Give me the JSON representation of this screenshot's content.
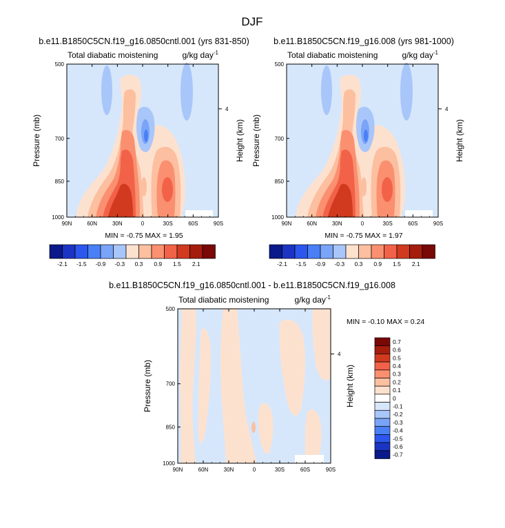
{
  "main_title": "DJF",
  "colors": {
    "diverging_12": [
      "#0a1a8a",
      "#1b34c4",
      "#2b57ee",
      "#4a80f6",
      "#7aa4f8",
      "#a9c6fa",
      "#fde1cf",
      "#fcbf9f",
      "#fa9070",
      "#f26248",
      "#d13a1f",
      "#a51d0c",
      "#7a0806"
    ],
    "background_fill": "#d6e7fb"
  },
  "chart_data": [
    {
      "type": "contour",
      "title": "b.e11.B1850C5CN.f19_g16.0850cntl.001 (yrs 831-850)",
      "left_label": "Total diabatic moistening",
      "right_label": "g/kg day",
      "right_label_sup": "-1",
      "ylabel": "Pressure (mb)",
      "ylabel_right": "Height (km)",
      "x_ticks": [
        "90N",
        "60N",
        "30N",
        "0",
        "30S",
        "60S",
        "90S"
      ],
      "y_ticks": [
        "500",
        "700",
        "850",
        "1000"
      ],
      "y_ticks_right": [
        "4"
      ],
      "stats": "MIN = -0.75  MAX =  1.95",
      "colorbar": {
        "orientation": "horizontal",
        "labels": [
          "-2.1",
          "-1.5",
          "-0.9",
          "-0.3",
          "0.3",
          "0.9",
          "1.5",
          "2.1"
        ]
      },
      "features": [
        {
          "lat": -20,
          "p": 950,
          "value": 1.95
        },
        {
          "lat": -20,
          "p": 820,
          "value": 1.5
        },
        {
          "lat": 45,
          "p": 860,
          "value": 1.2
        },
        {
          "lat": -3,
          "p": 870,
          "value": 0.9
        },
        {
          "lat": -5,
          "p": 690,
          "value": -0.75
        },
        {
          "lat": 55,
          "p": 560,
          "value": -0.3
        },
        {
          "lat": -45,
          "p": 560,
          "value": -0.3
        }
      ]
    },
    {
      "type": "contour",
      "title": "b.e11.B1850C5CN.f19_g16.008 (yrs 981-1000)",
      "left_label": "Total diabatic moistening",
      "right_label": "g/kg day",
      "right_label_sup": "-1",
      "ylabel": "Pressure (mb)",
      "ylabel_right": "Height (km)",
      "x_ticks": [
        "90N",
        "60N",
        "30N",
        "0",
        "30S",
        "60S",
        "90S"
      ],
      "y_ticks": [
        "500",
        "700",
        "850",
        "1000"
      ],
      "y_ticks_right": [
        "4"
      ],
      "stats": "MIN = -0.75  MAX =  1.97",
      "colorbar": {
        "orientation": "horizontal",
        "labels": [
          "-2.1",
          "-1.5",
          "-0.9",
          "-0.3",
          "0.3",
          "0.9",
          "1.5",
          "2.1"
        ]
      },
      "features": [
        {
          "lat": -20,
          "p": 950,
          "value": 1.97
        },
        {
          "lat": -20,
          "p": 820,
          "value": 1.5
        },
        {
          "lat": 45,
          "p": 860,
          "value": 1.2
        },
        {
          "lat": -3,
          "p": 870,
          "value": 0.9
        },
        {
          "lat": -5,
          "p": 690,
          "value": -0.75
        },
        {
          "lat": 55,
          "p": 560,
          "value": -0.3
        },
        {
          "lat": -45,
          "p": 560,
          "value": -0.3
        }
      ]
    },
    {
      "type": "contour",
      "title": "b.e11.B1850C5CN.f19_g16.0850cntl.001 - b.e11.B1850C5CN.f19_g16.008",
      "left_label": "Total diabatic moistening",
      "right_label": "g/kg day",
      "right_label_sup": "-1",
      "ylabel": "Pressure (mb)",
      "ylabel_right": "Height (km)",
      "x_ticks": [
        "90N",
        "60N",
        "30N",
        "0",
        "30S",
        "60S",
        "90S"
      ],
      "y_ticks": [
        "500",
        "700",
        "850",
        "1000"
      ],
      "y_ticks_right": [
        "4"
      ],
      "stats": "MIN = -0.10  MAX =  0.24",
      "colorbar": {
        "orientation": "vertical",
        "labels": [
          "0.7",
          "0.6",
          "0.5",
          "0.4",
          "0.3",
          "0.2",
          "0.1",
          "0",
          "-0.1",
          "-0.2",
          "-0.3",
          "-0.4",
          "-0.5",
          "-0.6",
          "-0.7"
        ],
        "colors": [
          "#7a0806",
          "#a51d0c",
          "#d13a1f",
          "#f26248",
          "#fa9070",
          "#fcbf9f",
          "#fde1cf",
          "#ffffff",
          "#d6e7fb",
          "#a9c6fa",
          "#7aa4f8",
          "#4a80f6",
          "#2b57ee",
          "#1b34c4",
          "#0a1a8a"
        ]
      },
      "features": [
        {
          "lat": 0,
          "p": 920,
          "value": 0.24
        },
        {
          "lat": 60,
          "p": 700,
          "value": 0.1
        },
        {
          "lat": -40,
          "p": 650,
          "value": 0.1
        },
        {
          "lat": 15,
          "p": 600,
          "value": -0.1
        }
      ]
    }
  ]
}
